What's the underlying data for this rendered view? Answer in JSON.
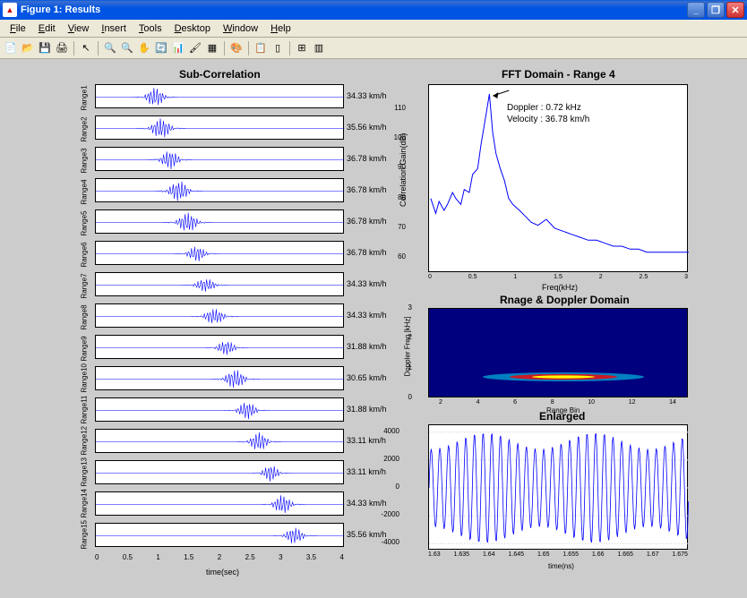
{
  "window": {
    "title": "Figure 1: Results",
    "icon_text": "▲"
  },
  "menu": [
    "File",
    "Edit",
    "View",
    "Insert",
    "Tools",
    "Desktop",
    "Window",
    "Help"
  ],
  "toolbar_icons": [
    "📄",
    "📂",
    "💾",
    "🖨",
    "↖",
    "🔍",
    "🔍",
    "✋",
    "🔄",
    "📊",
    "🖌",
    "▦",
    "🎨",
    "📋",
    "▯",
    "⊞",
    "▥"
  ],
  "sub_correlation": {
    "title": "Sub-Correlation",
    "xlabel": "time(sec)",
    "x_ticks": [
      "0",
      "0.5",
      "1",
      "1.5",
      "2",
      "2.5",
      "3",
      "3.5",
      "4"
    ],
    "x_range": [
      0,
      4.2
    ],
    "line_color": "#0000ff",
    "background": "#ffffff",
    "ranges": [
      {
        "label": "Range1",
        "speed": "34.33 km/h",
        "burst_center": 1.0,
        "burst_width": 0.5,
        "amp": 0.85
      },
      {
        "label": "Range2",
        "speed": "35.56 km/h",
        "burst_center": 1.1,
        "burst_width": 0.55,
        "amp": 0.9
      },
      {
        "label": "Range3",
        "speed": "36.78 km/h",
        "burst_center": 1.25,
        "burst_width": 0.5,
        "amp": 0.85
      },
      {
        "label": "Range4",
        "speed": "36.78 km/h",
        "burst_center": 1.4,
        "burst_width": 0.55,
        "amp": 0.92
      },
      {
        "label": "Range5",
        "speed": "36.78 km/h",
        "burst_center": 1.55,
        "burst_width": 0.55,
        "amp": 0.88
      },
      {
        "label": "Range6",
        "speed": "36.78 km/h",
        "burst_center": 1.7,
        "burst_width": 0.5,
        "amp": 0.7
      },
      {
        "label": "Range7",
        "speed": "34.33 km/h",
        "burst_center": 1.85,
        "burst_width": 0.55,
        "amp": 0.6
      },
      {
        "label": "Range8",
        "speed": "34.33 km/h",
        "burst_center": 2.0,
        "burst_width": 0.55,
        "amp": 0.7
      },
      {
        "label": "Range9",
        "speed": "31.88 km/h",
        "burst_center": 2.2,
        "burst_width": 0.5,
        "amp": 0.65
      },
      {
        "label": "Range10",
        "speed": "30.65 km/h",
        "burst_center": 2.35,
        "burst_width": 0.55,
        "amp": 0.85
      },
      {
        "label": "Range11",
        "speed": "31.88 km/h",
        "burst_center": 2.55,
        "burst_width": 0.5,
        "amp": 0.8
      },
      {
        "label": "Range12",
        "speed": "33.11 km/h",
        "burst_center": 2.75,
        "burst_width": 0.5,
        "amp": 0.85
      },
      {
        "label": "Range13",
        "speed": "33.11 km/h",
        "burst_center": 2.95,
        "burst_width": 0.45,
        "amp": 0.75
      },
      {
        "label": "Range14",
        "speed": "34.33 km/h",
        "burst_center": 3.15,
        "burst_width": 0.5,
        "amp": 0.85
      },
      {
        "label": "Range15",
        "speed": "35.56 km/h",
        "burst_center": 3.35,
        "burst_width": 0.5,
        "amp": 0.75
      }
    ]
  },
  "fft": {
    "title": "FFT Domain - Range 4",
    "xlabel": "Freq(kHz)",
    "ylabel": "Correlation Gain(dB)",
    "annotation_line1": "Doppler : 0.72 kHz",
    "annotation_line2": "Velocity : 36.78 km/h",
    "x_ticks": [
      "0",
      "0.5",
      "1",
      "1.5",
      "2",
      "2.5",
      "3"
    ],
    "y_ticks": [
      "60",
      "70",
      "80",
      "90",
      "100",
      "110"
    ],
    "xlim": [
      0,
      3.1
    ],
    "ylim": [
      55,
      118
    ],
    "line_color": "#0000ff",
    "arrow_target": [
      0.72,
      115
    ],
    "data": [
      [
        0.02,
        80
      ],
      [
        0.08,
        75
      ],
      [
        0.12,
        79
      ],
      [
        0.18,
        76
      ],
      [
        0.22,
        78
      ],
      [
        0.28,
        82
      ],
      [
        0.32,
        80
      ],
      [
        0.38,
        78
      ],
      [
        0.42,
        83
      ],
      [
        0.48,
        82
      ],
      [
        0.52,
        88
      ],
      [
        0.58,
        90
      ],
      [
        0.62,
        98
      ],
      [
        0.68,
        108
      ],
      [
        0.72,
        115
      ],
      [
        0.76,
        102
      ],
      [
        0.8,
        95
      ],
      [
        0.85,
        90
      ],
      [
        0.9,
        86
      ],
      [
        0.95,
        80
      ],
      [
        1.0,
        78
      ],
      [
        1.08,
        76
      ],
      [
        1.15,
        74
      ],
      [
        1.22,
        72
      ],
      [
        1.3,
        71
      ],
      [
        1.4,
        73
      ],
      [
        1.5,
        70
      ],
      [
        1.6,
        69
      ],
      [
        1.7,
        68
      ],
      [
        1.8,
        67
      ],
      [
        1.9,
        66
      ],
      [
        2.0,
        66
      ],
      [
        2.1,
        65
      ],
      [
        2.2,
        64
      ],
      [
        2.3,
        64
      ],
      [
        2.4,
        63
      ],
      [
        2.5,
        63
      ],
      [
        2.6,
        62
      ],
      [
        2.7,
        62
      ],
      [
        2.8,
        62
      ],
      [
        2.9,
        62
      ],
      [
        3.0,
        62
      ],
      [
        3.1,
        62
      ]
    ]
  },
  "range_doppler": {
    "title": "Rnage & Doppler Domain",
    "xlabel": "Range Bin",
    "ylabel": "Doppler Freq [kHz]",
    "x_ticks": [
      "2",
      "4",
      "6",
      "8",
      "10",
      "12",
      "14"
    ],
    "y_ticks": [
      "0",
      "1",
      "2",
      "3"
    ],
    "xlim": [
      0.5,
      15
    ],
    "ylim": [
      0,
      3
    ],
    "background": "#00007f",
    "hotspot": {
      "x": 8,
      "y": 0.72,
      "width_bins": 5,
      "color_inner": "#ffff00",
      "color_mid": "#ff0000",
      "color_outer": "#00ffff"
    }
  },
  "enlarged": {
    "title": "Enlarged",
    "xlabel": "time(ns)",
    "x_ticks": [
      "1.63",
      "1.635",
      "1.64",
      "1.645",
      "1.65",
      "1.655",
      "1.66",
      "1.665",
      "1.67",
      "1.675"
    ],
    "y_ticks": [
      "-4000",
      "-2000",
      "0",
      "2000",
      "4000"
    ],
    "xlim": [
      1.628,
      1.678
    ],
    "ylim": [
      -4500,
      4500
    ],
    "line_color": "#0000ff",
    "cycles": 30,
    "amplitude": 4000
  }
}
